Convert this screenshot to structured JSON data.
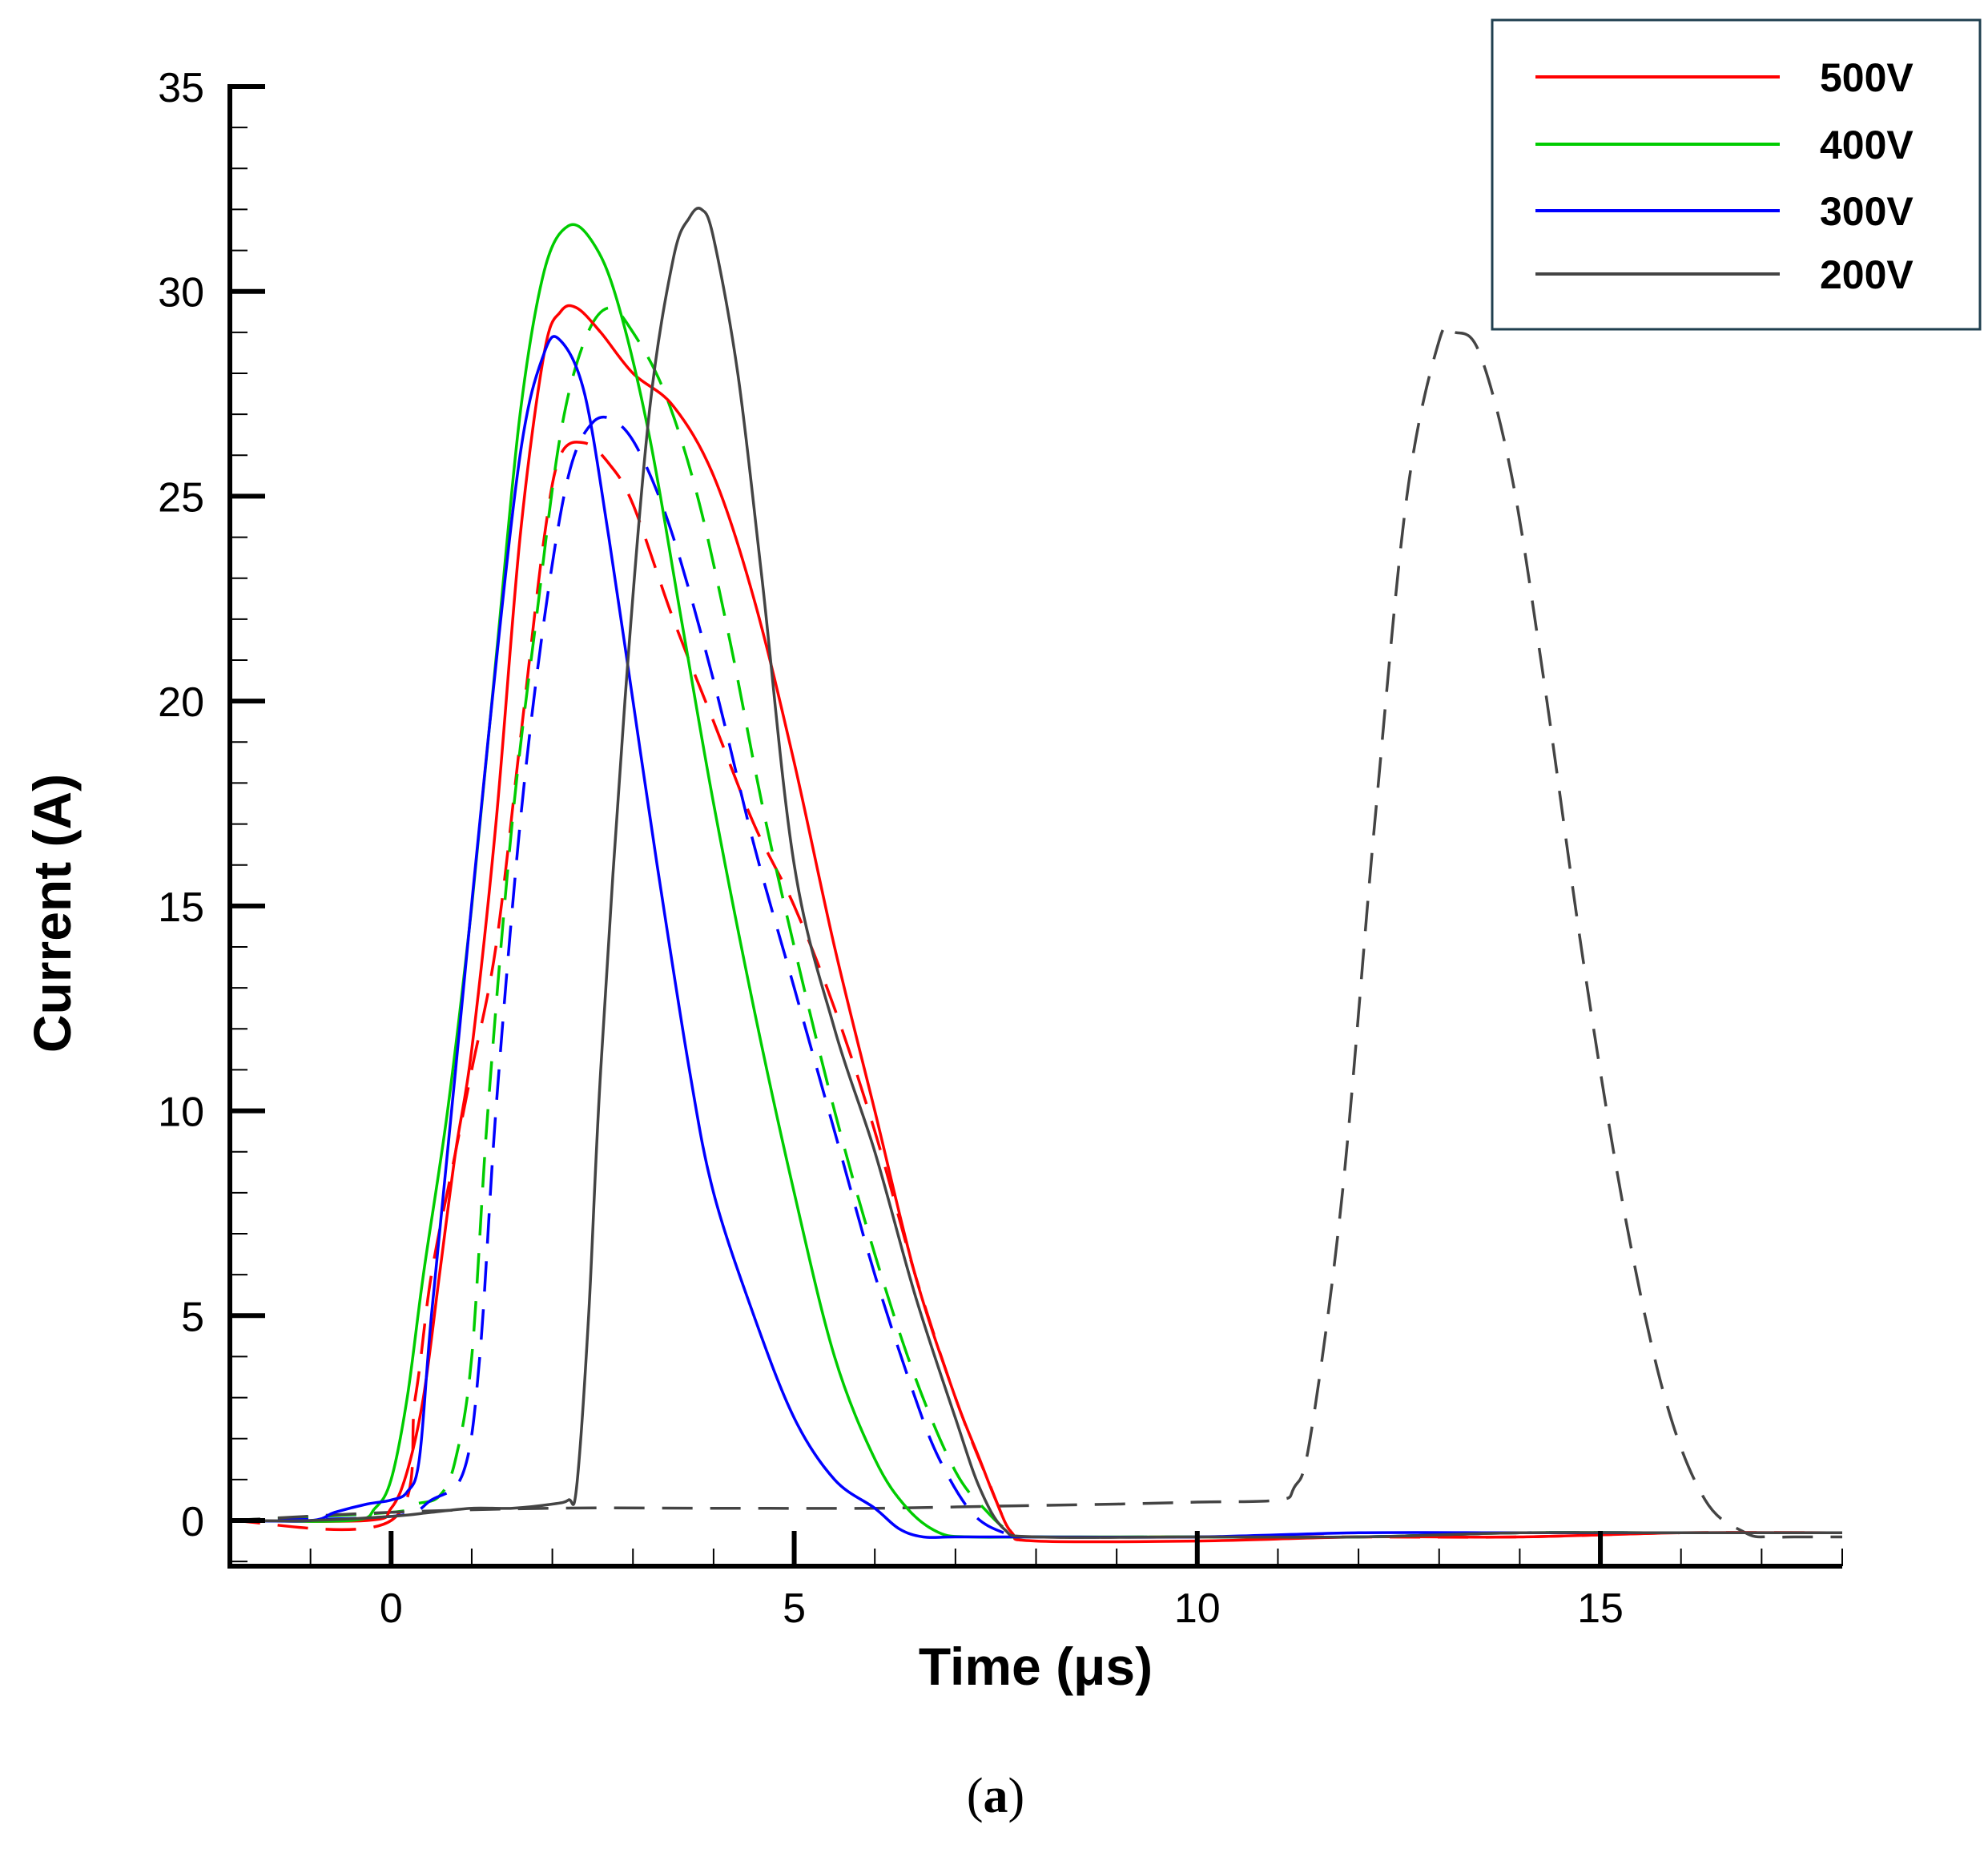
{
  "chart_data": {
    "type": "line",
    "title": "",
    "xlabel": "Time (μs)",
    "ylabel": "Current (A)",
    "xlim": [
      -2,
      18
    ],
    "ylim": [
      -1,
      35
    ],
    "xticks": [
      0,
      5,
      10,
      15
    ],
    "yticks": [
      0,
      5,
      10,
      15,
      20,
      25,
      30,
      35
    ],
    "x_minor_step": 1,
    "y_minor_step": 1,
    "grid": false,
    "legend_position": "top-right",
    "legend": [
      "500V",
      "400V",
      "300V",
      "200V"
    ],
    "series": [
      {
        "name": "500V",
        "color": "#ff0000",
        "style": "solid",
        "x": [
          -2,
          -0.3,
          0,
          0.2,
          0.4,
          0.6,
          0.8,
          1.0,
          1.3,
          1.6,
          1.9,
          2.1,
          2.3,
          2.6,
          3.0,
          3.5,
          4.0,
          4.5,
          5.0,
          5.5,
          6.0,
          6.5,
          7.0,
          7.3,
          7.5,
          7.7,
          8,
          10,
          12,
          14,
          16,
          18
        ],
        "y": [
          0,
          0,
          0.3,
          1.2,
          3,
          6,
          9,
          11.5,
          17,
          24,
          28.5,
          29.5,
          29.6,
          29,
          28,
          27.2,
          25.5,
          22.5,
          18.5,
          14,
          10,
          6,
          3,
          1.5,
          0.5,
          -0.3,
          -0.5,
          -0.5,
          -0.4,
          -0.4,
          -0.3,
          -0.3
        ]
      },
      {
        "name": "400V",
        "color": "#00cc00",
        "style": "solid",
        "x": [
          -2,
          -0.5,
          -0.2,
          0,
          0.2,
          0.4,
          0.7,
          1.0,
          1.3,
          1.6,
          1.9,
          2.2,
          2.5,
          2.8,
          3.2,
          3.6,
          4.0,
          4.5,
          5.0,
          5.5,
          6.0,
          6.4,
          6.8,
          7.2,
          8,
          10,
          12,
          14,
          16,
          18
        ],
        "y": [
          0,
          0,
          0.3,
          1,
          3,
          6,
          10,
          15,
          21,
          27,
          30.5,
          31.6,
          31.2,
          29.8,
          26.5,
          22,
          17.5,
          12.5,
          8,
          4,
          1.5,
          0.3,
          -0.3,
          -0.4,
          -0.4,
          -0.4,
          -0.4,
          -0.3,
          -0.3,
          -0.3
        ]
      },
      {
        "name": "300V",
        "color": "#0000ff",
        "style": "solid",
        "x": [
          -2,
          -1,
          -0.7,
          -0.3,
          0,
          0.2,
          0.35,
          0.5,
          0.8,
          1.2,
          1.6,
          1.9,
          2.1,
          2.4,
          2.7,
          3.0,
          3.3,
          3.7,
          4.0,
          4.5,
          5.0,
          5.5,
          6.0,
          6.3,
          6.6,
          7,
          8,
          10,
          12,
          14,
          16,
          18
        ],
        "y": [
          0,
          0,
          0.2,
          0.4,
          0.5,
          0.7,
          1.5,
          5,
          11,
          19,
          26,
          28.5,
          28.8,
          27.5,
          24,
          20,
          16,
          11,
          8,
          5,
          2.5,
          1,
          0.3,
          -0.2,
          -0.4,
          -0.4,
          -0.4,
          -0.4,
          -0.3,
          -0.3,
          -0.3,
          -0.3
        ]
      },
      {
        "name": "200V",
        "color": "#444444",
        "style": "solid",
        "x": [
          -2,
          -1,
          0,
          0.5,
          1,
          1.5,
          2,
          2.2,
          2.3,
          2.45,
          2.6,
          2.9,
          3.2,
          3.5,
          3.7,
          3.85,
          4.0,
          4.3,
          4.6,
          5.0,
          5.5,
          6.0,
          6.5,
          7.0,
          7.3,
          7.6,
          8,
          10,
          12,
          14,
          16,
          18
        ],
        "y": [
          0,
          0,
          0.1,
          0.2,
          0.3,
          0.3,
          0.4,
          0.5,
          0.8,
          5,
          11,
          20,
          27,
          30.8,
          31.8,
          32,
          31.3,
          28,
          23,
          16,
          12,
          9,
          5.5,
          2.5,
          0.8,
          -0.2,
          -0.4,
          -0.4,
          -0.4,
          -0.3,
          -0.3,
          -0.3
        ]
      },
      {
        "name": "500V dashed",
        "color": "#ff0000",
        "style": "dashed",
        "x": [
          -2,
          0,
          0.3,
          0.5,
          0.8,
          1.0,
          1.3,
          1.6,
          1.9,
          2.1,
          2.4,
          2.7,
          3.0,
          3.5,
          4.0,
          4.5,
          5.0,
          5.5,
          6.0,
          6.5,
          7.0,
          7.4,
          7.7,
          8,
          10,
          12,
          14,
          16,
          18
        ],
        "y": [
          0,
          0,
          3,
          6,
          9,
          11,
          14,
          19,
          24,
          26,
          26.3,
          25.8,
          24.8,
          22,
          19.5,
          17,
          15,
          12.5,
          9.5,
          6,
          3,
          1,
          -0.3,
          -0.4,
          -0.4,
          -0.4,
          -0.4,
          -0.3,
          -0.3
        ]
      },
      {
        "name": "400V dashed",
        "color": "#00cc00",
        "style": "dashed",
        "x": [
          -2,
          0,
          0.3,
          0.6,
          0.8,
          1.0,
          1.2,
          1.5,
          1.8,
          2.1,
          2.4,
          2.7,
          3.0,
          3.4,
          3.8,
          4.2,
          4.6,
          5.0,
          5.5,
          6.0,
          6.5,
          7.0,
          7.4,
          7.7,
          8,
          10,
          12,
          14,
          16,
          18
        ],
        "y": [
          0,
          0.2,
          0.4,
          0.6,
          1.5,
          4,
          10,
          17,
          22,
          26.5,
          28.8,
          29.6,
          29,
          27.5,
          25,
          21.5,
          17.5,
          14,
          10,
          6.5,
          3.5,
          1.2,
          0.2,
          -0.3,
          -0.4,
          -0.4,
          -0.4,
          -0.3,
          -0.3,
          -0.3
        ]
      },
      {
        "name": "300V dashed",
        "color": "#0000ff",
        "style": "dashed",
        "x": [
          -2,
          0,
          0.5,
          0.9,
          1.1,
          1.3,
          1.6,
          1.9,
          2.2,
          2.5,
          2.8,
          3.1,
          3.5,
          4.0,
          4.5,
          5.0,
          5.5,
          6.0,
          6.5,
          6.8,
          7.2,
          7.6,
          8,
          10,
          12,
          14,
          16,
          18
        ],
        "y": [
          0,
          0.1,
          0.5,
          1.2,
          4,
          10,
          17,
          22,
          25.5,
          26.8,
          26.8,
          26,
          24,
          20.5,
          16.5,
          13,
          9.5,
          6,
          3,
          1.5,
          0.2,
          -0.3,
          -0.4,
          -0.4,
          -0.4,
          -0.3,
          -0.3,
          -0.3
        ]
      },
      {
        "name": "200V dashed",
        "color": "#444444",
        "style": "dashed",
        "x": [
          -2,
          0,
          2,
          4,
          6,
          7.5,
          9,
          10,
          11,
          11.2,
          11.4,
          11.8,
          12.2,
          12.6,
          13.0,
          13.2,
          13.5,
          13.9,
          14.3,
          14.8,
          15.3,
          15.8,
          16.3,
          16.8,
          17.1,
          17.4,
          18
        ],
        "y": [
          0,
          0.2,
          0.3,
          0.3,
          0.3,
          0.35,
          0.4,
          0.45,
          0.5,
          0.8,
          2,
          8,
          17,
          25,
          28.8,
          29,
          28.5,
          25.5,
          20.5,
          13.5,
          7.5,
          3,
          0.5,
          -0.3,
          -0.4,
          -0.4,
          -0.4
        ]
      }
    ]
  },
  "caption": {
    "open": "(",
    "letter": "a",
    "close": ")"
  }
}
